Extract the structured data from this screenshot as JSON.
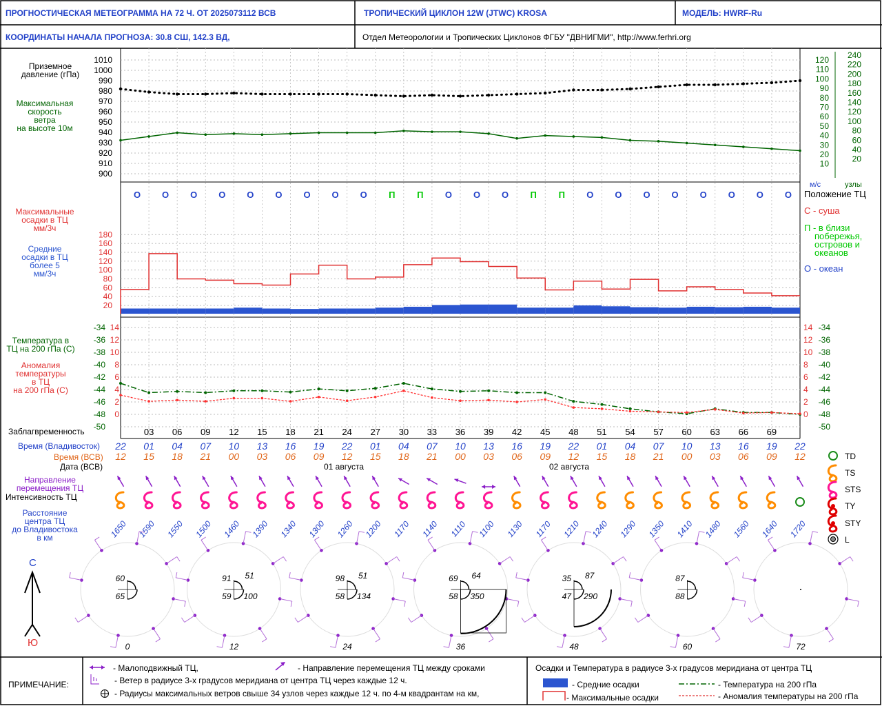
{
  "header": {
    "title": "ПРОГНОСТИЧЕСКАЯ МЕТЕОГРАММА НА 72 Ч. ОТ 2025073112 ВСВ",
    "cyclone": "ТРОПИЧЕСКИЙ ЦИКЛОН  12W (JTWC)  KROSA",
    "model": "МОДЕЛЬ:   HWRF-Ru",
    "coords": "КООРДИНАТЫ НАЧАЛА ПРОГНОЗА:  30.8  СШ,   142.3  ВД,",
    "org": "Отдел Метеорологии и Тропических Циклонов ФГБУ \"ДВНИГМИ\",  http://www.ferhri.org"
  },
  "labels": {
    "pressure": [
      "Приземное",
      "давление (гПа)"
    ],
    "wind": [
      "Максимальная",
      "скорость",
      "ветра",
      "на высоте 10м"
    ],
    "precip_max": [
      "Максимальные",
      "осадки в ТЦ",
      "мм/3ч"
    ],
    "precip_mean": [
      "Средние",
      "осадки в ТЦ",
      "более 5",
      "мм/3ч"
    ],
    "temp": [
      "Температура в",
      "ТЦ на 200 гПа (С)"
    ],
    "anom": [
      "Аномалия",
      "температуры",
      "в ТЦ",
      "на 200 гПа (С)"
    ],
    "lead": "Заблагвременность",
    "time_vl": "Время (Владивосток)",
    "time_utc": "Время (ВСВ)",
    "date": "Дата (ВСВ)",
    "date1": "01 августа",
    "date2": "02 августа",
    "direction": [
      "Направление",
      "перемещения ТЦ"
    ],
    "intensity": "Интенсивность ТЦ",
    "distance": [
      "Расстояние",
      "центра ТЦ",
      "до Владивостока",
      "в км"
    ],
    "wind_units_ms": "м/с",
    "wind_units_kt": "узлы",
    "position_title": "Положение ТЦ",
    "pos_land": "С - суша",
    "pos_coast": [
      "П - в близи",
      "побережья,",
      "островов и",
      "океанов"
    ],
    "pos_ocean": "О - океан",
    "north": "С",
    "south": "Ю"
  },
  "legend": {
    "td": "TD",
    "ts": "TS",
    "sts": "STS",
    "ty": "TY",
    "sty": "STY",
    "l": "L"
  },
  "notes": {
    "title": "ПРИМЕЧАНИЕ:",
    "stationary": "- Малоподвижный ТЦ,",
    "direction": "- Направление перемещения ТЦ между сроками",
    "wind3": "- Ветер в радиусе 3-х градусов меридиана от центра ТЦ через каждые 12 ч.",
    "radii": "- Радиусы максимальных ветров свыше 34 узлов через каждые 12 ч. по 4-м квадрантам на км,",
    "precip_title": "Осадки и Температура в радиусе 3-х градусов меридиана от центра ТЦ",
    "mean_precip": "- Средние осадки",
    "max_precip": "- Максимальные осадки",
    "temp200": "- Температура на 200 гПа",
    "anom200": "- Аномалия температуры на 200 гПа"
  },
  "axes": {
    "pressure_ticks": [
      "1010",
      "1000",
      "990",
      "980",
      "970",
      "960",
      "950",
      "940",
      "930",
      "920",
      "910",
      "900"
    ],
    "wind_ms_ticks": [
      "120",
      "110",
      "100",
      "90",
      "80",
      "70",
      "60",
      "50",
      "40",
      "30",
      "20",
      "10"
    ],
    "wind_kt_ticks": [
      "240",
      "220",
      "200",
      "180",
      "160",
      "140",
      "120",
      "100",
      "80",
      "60",
      "40",
      "20"
    ],
    "precip_ticks": [
      "180",
      "160",
      "140",
      "120",
      "100",
      "80",
      "60",
      "40",
      "20"
    ],
    "temp_left": [
      "-34",
      "-36",
      "-38",
      "-40",
      "-42",
      "-44",
      "-46",
      "-48",
      "-50"
    ],
    "anom_ticks": [
      "14",
      "12",
      "10",
      "8",
      "6",
      "4",
      "2",
      "0"
    ]
  },
  "chart_data": {
    "type": "line",
    "lead_hours": [
      0,
      3,
      6,
      9,
      12,
      15,
      18,
      21,
      24,
      27,
      30,
      33,
      36,
      39,
      42,
      45,
      48,
      51,
      54,
      57,
      60,
      63,
      66,
      69,
      72
    ],
    "lead_labels": [
      "03",
      "06",
      "09",
      "12",
      "15",
      "18",
      "21",
      "24",
      "27",
      "30",
      "33",
      "36",
      "39",
      "42",
      "45",
      "48",
      "51",
      "54",
      "57",
      "60",
      "63",
      "66",
      "69"
    ],
    "time_vladivostok": [
      "22",
      "01",
      "04",
      "07",
      "10",
      "13",
      "16",
      "19",
      "22",
      "01",
      "04",
      "07",
      "10",
      "13",
      "16",
      "19",
      "22",
      "01",
      "04",
      "07",
      "10",
      "13",
      "16",
      "19",
      "22"
    ],
    "time_utc": [
      "12",
      "15",
      "18",
      "21",
      "00",
      "03",
      "06",
      "09",
      "12",
      "15",
      "18",
      "21",
      "00",
      "03",
      "06",
      "09",
      "12",
      "15",
      "18",
      "21",
      "00",
      "03",
      "06",
      "09",
      "12"
    ],
    "series": [
      {
        "name": "Приземное давление (гПа)",
        "values": [
          982,
          979,
          977,
          977,
          978,
          977,
          977,
          977,
          977,
          976,
          975,
          976,
          975,
          976,
          977,
          978,
          981,
          981,
          982,
          984,
          986,
          986,
          987,
          988,
          990
        ]
      },
      {
        "name": "Максимальная скорость ветра (м/с)",
        "values": [
          35,
          39,
          43,
          41,
          42,
          41,
          42,
          43,
          43,
          43,
          45,
          44,
          44,
          42,
          37,
          40,
          39,
          38,
          35,
          34,
          32,
          30,
          28,
          26,
          24
        ]
      },
      {
        "name": "Максимальные осадки (мм/3ч)",
        "values": [
          56,
          137,
          80,
          77,
          69,
          66,
          91,
          111,
          80,
          84,
          112,
          127,
          119,
          108,
          82,
          55,
          75,
          57,
          79,
          53,
          62,
          56,
          48,
          42
        ]
      },
      {
        "name": "Средние осадки (мм/3ч)",
        "values": [
          13,
          13,
          13,
          13,
          15,
          13,
          12,
          13,
          13,
          15,
          17,
          21,
          22,
          22,
          15,
          15,
          20,
          18,
          16,
          15,
          17,
          16,
          17,
          15
        ]
      },
      {
        "name": "Температура на 200 гПа (С)",
        "values": [
          -43.0,
          -44.5,
          -44.3,
          -44.5,
          -44.2,
          -44.2,
          -44.4,
          -43.9,
          -44.2,
          -43.8,
          -43.0,
          -43.9,
          -44.3,
          -44.2,
          -44.5,
          -44.5,
          -45.9,
          -46.4,
          -47.1,
          -47.6,
          -47.9,
          -47.1,
          -47.7,
          -47.7,
          -48.0
        ]
      },
      {
        "name": "Аномалия температуры на 200 гПа (С)",
        "values": [
          3.1,
          2.1,
          2.3,
          2.1,
          2.6,
          2.6,
          2.1,
          2.8,
          2.2,
          2.8,
          3.8,
          2.7,
          2.2,
          2.3,
          2.0,
          2.4,
          1.1,
          0.9,
          0.5,
          0.4,
          0.3,
          0.8,
          0.2,
          0.3,
          0.1
        ]
      }
    ],
    "position": [
      "О",
      "О",
      "О",
      "О",
      "О",
      "О",
      "О",
      "О",
      "О",
      "П",
      "П",
      "О",
      "О",
      "О",
      "П",
      "П",
      "О",
      "О",
      "О",
      "О",
      "О",
      "О",
      "О",
      "О"
    ],
    "intensity": [
      "TS",
      "STS",
      "STS",
      "STS",
      "STS",
      "STS",
      "STS",
      "STS",
      "STS",
      "STS",
      "STS",
      "STS",
      "STS",
      "STS",
      "TS",
      "STS",
      "STS",
      "TS",
      "TS",
      "TS",
      "TS",
      "TS",
      "TS",
      "TS",
      "TD"
    ],
    "direction_deg": [
      330,
      330,
      330,
      330,
      330,
      330,
      330,
      330,
      330,
      330,
      300,
      300,
      290,
      null,
      330,
      330,
      330,
      330,
      330,
      330,
      330,
      330,
      330,
      330,
      330
    ],
    "distance_km": [
      "1650",
      "1590",
      "1550",
      "1500",
      "1460",
      "1390",
      "1340",
      "1300",
      "1260",
      "1200",
      "1170",
      "1140",
      "1110",
      "1100",
      "1130",
      "1170",
      "1210",
      "1240",
      "1290",
      "1350",
      "1410",
      "1480",
      "1560",
      "1640",
      "1720"
    ],
    "wind_roses": [
      {
        "lead": "0",
        "radii": [
          "60",
          "65"
        ]
      },
      {
        "lead": "12",
        "radii": [
          "91",
          "59",
          "51",
          "100"
        ]
      },
      {
        "lead": "24",
        "radii": [
          "98",
          "58",
          "51",
          "134"
        ]
      },
      {
        "lead": "36",
        "radii": [
          "69",
          "58",
          "64",
          "350"
        ]
      },
      {
        "lead": "48",
        "radii": [
          "35",
          "47",
          "87",
          "290"
        ]
      },
      {
        "lead": "60",
        "radii": [
          "87",
          "88"
        ]
      },
      {
        "lead": "72",
        "radii": []
      }
    ],
    "colors": {
      "pressure": "#000000",
      "wind": "#006400",
      "precip_max": "#e03030",
      "precip_mean": "#2b55d0",
      "temp": "#006400",
      "anom": "#ff3030",
      "ocean": "#2443c9",
      "coast": "#00c800",
      "land": "#e03030",
      "direction": "#8b1ec8",
      "distance": "#2443c9"
    }
  }
}
